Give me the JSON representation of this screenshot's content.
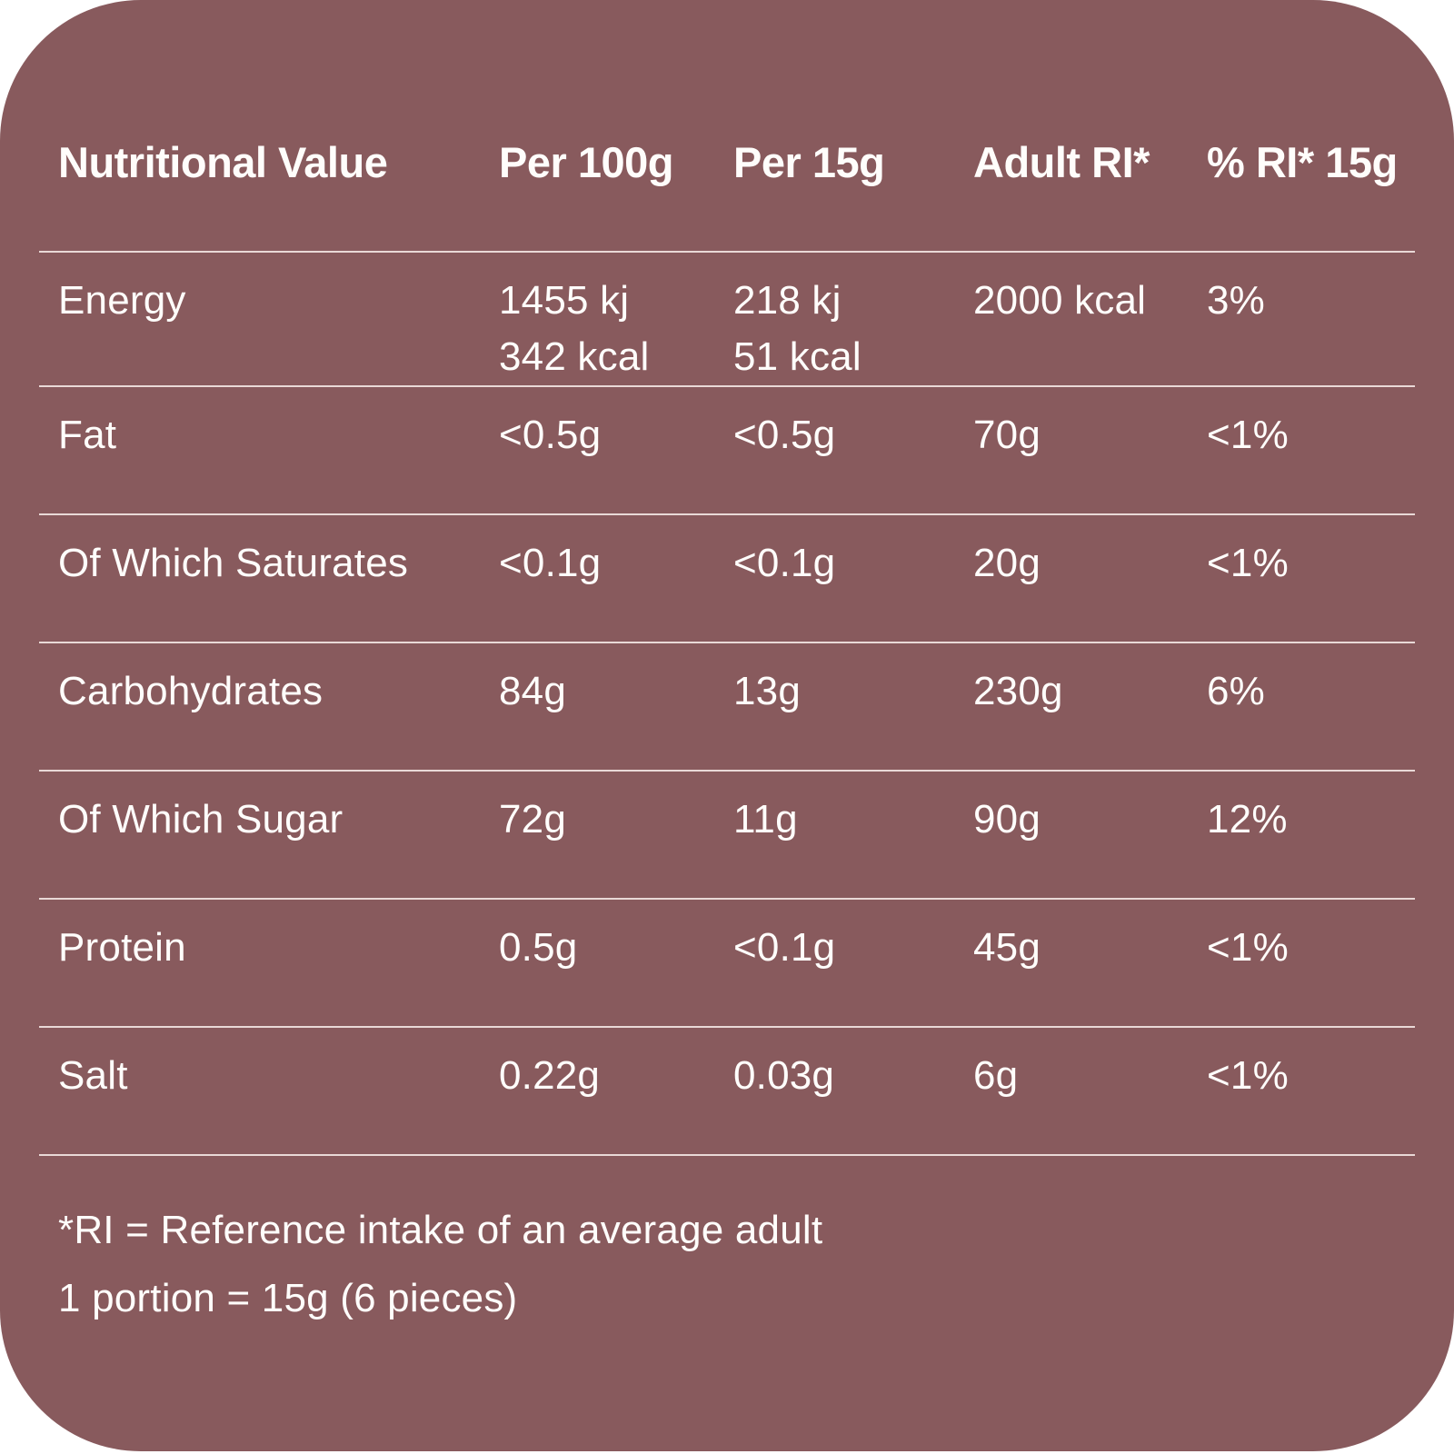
{
  "card": {
    "background_color": "#885A5D",
    "text_color": "#FFFDFB",
    "divider_color": "#E9D9D7"
  },
  "table": {
    "headers": [
      "Nutritional Value",
      "Per 100g",
      "Per 15g",
      "Adult RI*",
      "% RI* 15g"
    ],
    "rows": [
      {
        "label": "Energy",
        "per100g": "1455 kj",
        "per100g_2": "342 kcal",
        "per15g": "218 kj",
        "per15g_2": "51 kcal",
        "adult_ri": "2000 kcal",
        "pct_ri_15g": "3%"
      },
      {
        "label": "Fat",
        "per100g": "<0.5g",
        "per15g": "<0.5g",
        "adult_ri": "70g",
        "pct_ri_15g": "<1%"
      },
      {
        "label": "Of Which Saturates",
        "per100g": "<0.1g",
        "per15g": "<0.1g",
        "adult_ri": "20g",
        "pct_ri_15g": "<1%"
      },
      {
        "label": "Carbohydrates",
        "per100g": "84g",
        "per15g": "13g",
        "adult_ri": "230g",
        "pct_ri_15g": "6%"
      },
      {
        "label": "Of Which Sugar",
        "per100g": "72g",
        "per15g": "11g",
        "adult_ri": "90g",
        "pct_ri_15g": "12%"
      },
      {
        "label": "Protein",
        "per100g": "0.5g",
        "per15g": "<0.1g",
        "adult_ri": "45g",
        "pct_ri_15g": "<1%"
      },
      {
        "label": "Salt",
        "per100g": "0.22g",
        "per15g": "0.03g",
        "adult_ri": "6g",
        "pct_ri_15g": "<1%"
      }
    ]
  },
  "footnotes": {
    "line1": "*RI = Reference intake of an average adult",
    "line2": "1 portion = 15g (6 pieces)"
  }
}
